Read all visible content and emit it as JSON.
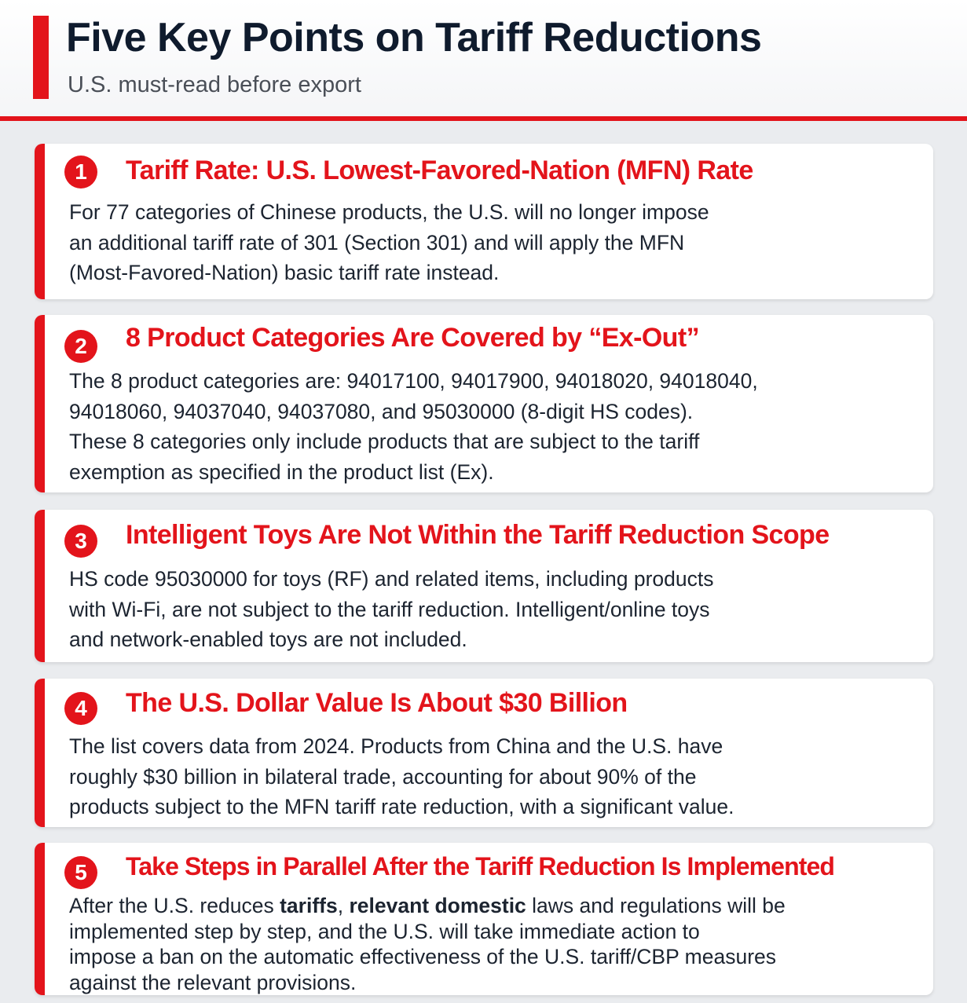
{
  "header": {
    "title": "Five Key Points on Tariff Reductions",
    "subtitle": "U.S. must-read before export"
  },
  "points": [
    {
      "number": "1",
      "title": "Tariff Rate: U.S. Lowest-Favored-Nation (MFN) Rate",
      "lines": [
        "For 77 categories of Chinese products,  the U.S. will no longer impose",
        "an additional tariff rate of 301 (Section 301) and will apply the MFN",
        "(Most-Favored-Nation) basic tariff rate instead."
      ]
    },
    {
      "number": "2",
      "title": "8 Product Categories Are Covered by “Ex-Out”",
      "lines": [
        "The 8 product categories are: 94017100, 94017900, 94018020, 94018040,",
        "94018060, 94037040, 94037080, and 95030000 (8-digit HS codes).",
        "These 8 categories only include products that are subject to the tariff",
        "exemption as specified in the product list (Ex)."
      ]
    },
    {
      "number": "3",
      "title": "Intelligent Toys Are Not Within the Tariff Reduction Scope",
      "lines": [
        "HS code 95030000 for toys (RF) and related items, including products",
        "with Wi-Fi, are not subject to the tariff reduction. Intelligent/online toys",
        "and network-enabled toys are not included."
      ]
    },
    {
      "number": "4",
      "title": "The U.S. Dollar Value Is About $30 Billion",
      "lines": [
        "The list covers data from 2024. Products from China and the U.S. have",
        "roughly $30 billion in bilateral trade, accounting for about 90% of the",
        "products subject to the MFN tariff rate reduction, with a significant value."
      ]
    },
    {
      "number": "5",
      "title": "Take Steps in Parallel After the Tariff Reduction Is Implemented",
      "line1": {
        "a": "After the U.S. reduces ",
        "b": "tariffs",
        "c": ", ",
        "d": "relevant domestic",
        "e": " laws and regulations will be"
      },
      "lines": [
        "implemented step by step, and the U.S. will take immediate action to",
        "impose a ban on the automatic effectiveness of the U.S. tariff/CBP measures",
        "against the relevant provisions."
      ]
    }
  ]
}
